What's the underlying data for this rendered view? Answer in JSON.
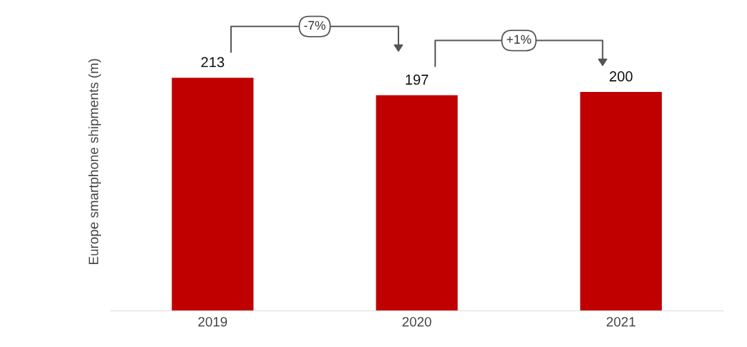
{
  "chart_data": {
    "type": "bar",
    "ylabel": "Europe smartphone shipments (m)",
    "categories": [
      "2019",
      "2020",
      "2021"
    ],
    "values": [
      213,
      197,
      200
    ],
    "color": "#c00000",
    "data_labels": true,
    "grid": false,
    "legend": false,
    "annotations": [
      "-7%",
      "+1%"
    ]
  }
}
